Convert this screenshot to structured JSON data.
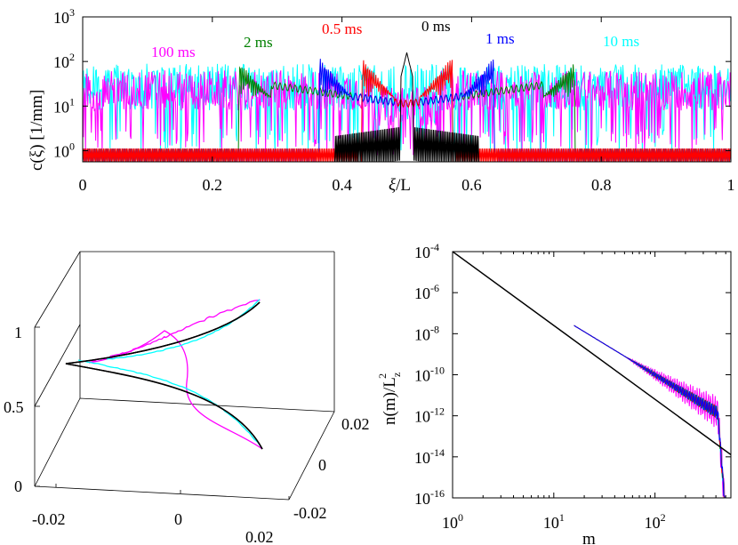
{
  "chart_data": [
    {
      "type": "line",
      "panel": "top",
      "xlabel_var": "ξ",
      "xlabel_rest": "/L",
      "ylabel": "c(ξ)  [1/mm]",
      "xlim": [
        0,
        1
      ],
      "ylim_log10": [
        -0.25,
        3
      ],
      "yscale": "log",
      "xticks": [
        "0",
        "0.2",
        "0.4",
        "0.6",
        "0.8",
        "1"
      ],
      "yticks": [
        {
          "base": "10",
          "exp": "0"
        },
        {
          "base": "10",
          "exp": "1"
        },
        {
          "base": "10",
          "exp": "2"
        },
        {
          "base": "10",
          "exp": "3"
        }
      ],
      "series": [
        {
          "name": "0 ms",
          "color": "#000000",
          "peak_halfwidth": 0.01,
          "peak_log10": 2.2
        },
        {
          "name": "0.5 ms",
          "color": "#ff0000",
          "edge_offset": 0.07,
          "peak_log10": 2.1
        },
        {
          "name": "1 ms",
          "color": "#0000ff",
          "edge_offset": 0.135,
          "peak_log10": 2.1
        },
        {
          "name": "2 ms",
          "color": "#008000",
          "edge_offset": 0.26,
          "peak_log10": 2.0
        },
        {
          "name": "10 ms",
          "color": "#00ffff",
          "edge_offset": 0.5,
          "peak_log10": 1.8
        },
        {
          "name": "100 ms",
          "color": "#ff00ff",
          "edge_offset": 0.5,
          "peak_log10": 1.7
        }
      ]
    },
    {
      "type": "line",
      "panel": "bottom-left-3d",
      "xticks": [
        "-0.02",
        "0",
        "0.02"
      ],
      "yticks": [
        "-0.02",
        "0",
        "0.02"
      ],
      "zticks": [
        "0",
        "0.5",
        "1"
      ],
      "series_colors": [
        "#ff00ff",
        "#00ffff",
        "#0000ff",
        "#ff0000",
        "#008000",
        "#000000"
      ]
    },
    {
      "type": "line",
      "panel": "bottom-right",
      "xscale": "log",
      "yscale": "log",
      "xlabel": "m",
      "ylabel_main": "n(m)/L",
      "ylabel_sub": "z",
      "ylabel_sup": "2",
      "xlim_log10": [
        0,
        2.75
      ],
      "ylim_log10": [
        -16,
        -4
      ],
      "xticks": [
        {
          "base": "10",
          "exp": "0"
        },
        {
          "base": "10",
          "exp": "1"
        },
        {
          "base": "10",
          "exp": "2"
        }
      ],
      "yticks": [
        {
          "base": "10",
          "exp": "-4"
        },
        {
          "base": "10",
          "exp": "-6"
        },
        {
          "base": "10",
          "exp": "-8"
        },
        {
          "base": "10",
          "exp": "-10"
        },
        {
          "base": "10",
          "exp": "-12"
        },
        {
          "base": "10",
          "exp": "-14"
        },
        {
          "base": "10",
          "exp": "-16"
        }
      ],
      "power_law": {
        "log10_n_at_m1": -4,
        "slope": -3
      }
    }
  ]
}
